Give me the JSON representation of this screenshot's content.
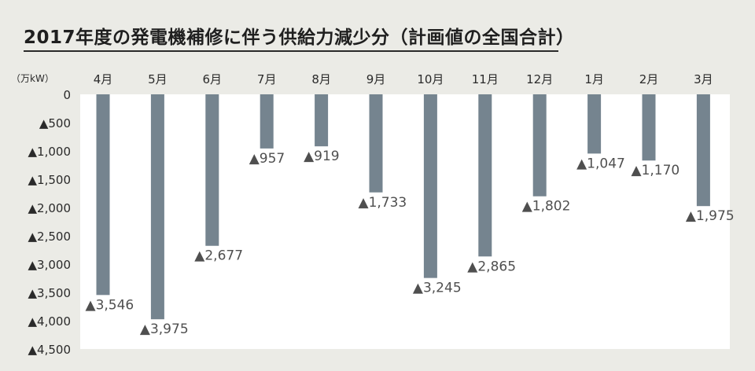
{
  "chart_data": {
    "type": "bar",
    "title": "2017年度の発電機補修に伴う供給力減少分（計画値の全国合計）",
    "ylabel": "（万kW）",
    "categories": [
      "4月",
      "5月",
      "6月",
      "7月",
      "8月",
      "9月",
      "10月",
      "11月",
      "12月",
      "1月",
      "2月",
      "3月"
    ],
    "values": [
      -3546,
      -3975,
      -2677,
      -957,
      -919,
      -1733,
      -3245,
      -2865,
      -1802,
      -1047,
      -1170,
      -1975
    ],
    "data_labels": [
      "▲3,546",
      "▲3,975",
      "▲2,677",
      "▲957",
      "▲919",
      "▲1,733",
      "▲3,245",
      "▲2,865",
      "▲1,802",
      "▲1,047",
      "▲1,170",
      "▲1,975"
    ],
    "ylim": [
      -4500,
      0
    ],
    "yticks": [
      0,
      -500,
      -1000,
      -1500,
      -2000,
      -2500,
      -3000,
      -3500,
      -4000,
      -4500
    ],
    "ytick_labels": [
      "0",
      "▲500",
      "▲1,000",
      "▲1,500",
      "▲2,000",
      "▲2,500",
      "▲3,000",
      "▲3,500",
      "▲4,000",
      "▲4,500"
    ],
    "grid": false,
    "colors": {
      "bar": "#75848f",
      "plot_background": "#ffffff",
      "page_background": "#ebebe6"
    }
  }
}
